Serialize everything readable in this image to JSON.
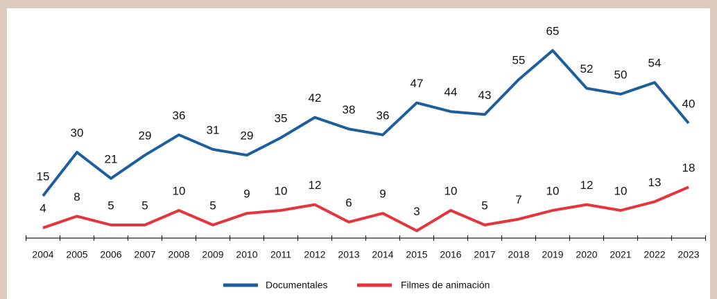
{
  "chart_data": {
    "type": "line",
    "categories": [
      "2004",
      "2005",
      "2006",
      "2007",
      "2008",
      "2009",
      "2010",
      "2011",
      "2012",
      "2013",
      "2014",
      "2015",
      "2016",
      "2017",
      "2018",
      "2019",
      "2020",
      "2021",
      "2022",
      "2023"
    ],
    "series": [
      {
        "name": "Documentales",
        "color": "#1f5e9c",
        "values": [
          15,
          30,
          21,
          29,
          36,
          31,
          29,
          35,
          42,
          38,
          36,
          47,
          44,
          43,
          55,
          65,
          52,
          50,
          54,
          40
        ]
      },
      {
        "name": "Filmes de animación",
        "color": "#e3353b",
        "values": [
          4,
          8,
          5,
          5,
          10,
          5,
          9,
          10,
          12,
          6,
          9,
          3,
          10,
          5,
          7,
          10,
          12,
          10,
          13,
          18
        ]
      }
    ],
    "data_labels": true,
    "legend": "bottom"
  }
}
